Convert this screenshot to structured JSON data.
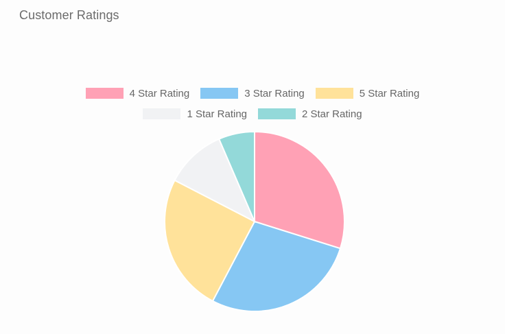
{
  "card": {
    "title": "Customer Ratings"
  },
  "chart_data": {
    "type": "pie",
    "title": "Customer Ratings",
    "legend_placement": "top",
    "start_angle_deg": 0,
    "direction": "clockwise",
    "slices": [
      {
        "label": "4 Star Rating",
        "value": 30,
        "color": "#ffa1b5"
      },
      {
        "label": "3 Star Rating",
        "value": 28,
        "color": "#86c7f3"
      },
      {
        "label": "5 Star Rating",
        "value": 25,
        "color": "#ffe29a"
      },
      {
        "label": "1 Star Rating",
        "value": 11,
        "color": "#f1f2f4"
      },
      {
        "label": "2 Star Rating",
        "value": 6.5,
        "color": "#93d9d9"
      }
    ]
  }
}
